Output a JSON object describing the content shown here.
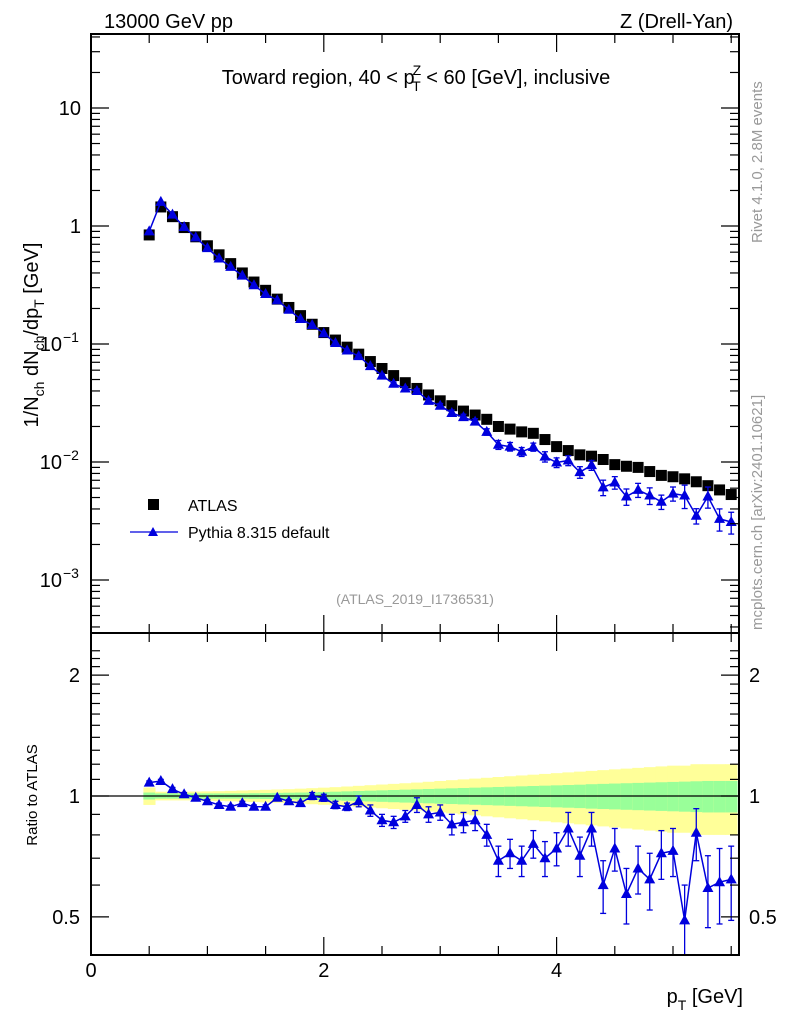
{
  "header": {
    "left": "13000 GeV pp",
    "right": "Z (Drell-Yan)"
  },
  "side_labels": {
    "rivet": "Rivet 4.1.0,  2.8M events",
    "mcplots": "mcplots.cern.ch [arXiv:2401.10621]"
  },
  "chart_data": [
    {
      "type": "scatter",
      "title": "Toward region, 40 < p_T^Z < 60 [GeV], inclusive",
      "title_parts": {
        "pre": "Toward region, 40 < p",
        "sup": "Z",
        "sub": "T",
        "post": " < 60 [GeV], inclusive"
      },
      "ylabel": "1/N_ch dN_ch/dp_T [GeV]",
      "yscale": "log",
      "ylim": [
        0.0003,
        50
      ],
      "xlim": [
        0,
        5.6
      ],
      "ytick_labels": [
        {
          "value": 10,
          "label": "10"
        },
        {
          "value": 1,
          "label": "1"
        },
        {
          "value": 0.1,
          "label": "10",
          "exp": "−1"
        },
        {
          "value": 0.01,
          "label": "10",
          "exp": "−2"
        },
        {
          "value": 0.001,
          "label": "10",
          "exp": "−3"
        }
      ],
      "analysis_id": "(ATLAS_2019_I1736531)",
      "legend": {
        "position": "bottom-left",
        "entries": [
          {
            "name": "ATLAS",
            "marker": "square",
            "color": "#000000"
          },
          {
            "name": "Pythia 8.315 default",
            "marker": "triangle",
            "color": "#0000dd"
          }
        ]
      },
      "x": [
        0.5,
        0.6,
        0.7,
        0.8,
        0.9,
        1.0,
        1.1,
        1.2,
        1.3,
        1.4,
        1.5,
        1.6,
        1.7,
        1.8,
        1.9,
        2.0,
        2.1,
        2.2,
        2.3,
        2.4,
        2.5,
        2.6,
        2.7,
        2.8,
        2.9,
        3.0,
        3.1,
        3.2,
        3.3,
        3.4,
        3.5,
        3.6,
        3.7,
        3.8,
        3.9,
        4.0,
        4.1,
        4.2,
        4.3,
        4.4,
        4.5,
        4.6,
        4.7,
        4.8,
        4.9,
        5.0,
        5.1,
        5.2,
        5.3,
        5.4,
        5.5
      ],
      "series": [
        {
          "name": "ATLAS",
          "values": [
            0.84,
            1.45,
            1.2,
            0.97,
            0.81,
            0.68,
            0.57,
            0.48,
            0.4,
            0.335,
            0.285,
            0.24,
            0.204,
            0.174,
            0.147,
            0.125,
            0.108,
            0.094,
            0.082,
            0.071,
            0.062,
            0.054,
            0.047,
            0.042,
            0.037,
            0.033,
            0.03,
            0.027,
            0.025,
            0.023,
            0.02,
            0.019,
            0.018,
            0.0175,
            0.0155,
            0.0135,
            0.0125,
            0.0115,
            0.0112,
            0.0105,
            0.0095,
            0.0092,
            0.009,
            0.0083,
            0.0077,
            0.0075,
            0.0072,
            0.0068,
            0.0063,
            0.0058,
            0.0053
          ]
        },
        {
          "name": "Pythia 8.315 default",
          "values": [
            0.9,
            1.6,
            1.25,
            0.98,
            0.8,
            0.65,
            0.53,
            0.45,
            0.38,
            0.315,
            0.265,
            0.235,
            0.195,
            0.163,
            0.145,
            0.123,
            0.102,
            0.088,
            0.079,
            0.065,
            0.054,
            0.046,
            0.042,
            0.04,
            0.033,
            0.03,
            0.026,
            0.024,
            0.022,
            0.018,
            0.014,
            0.0135,
            0.0122,
            0.0134,
            0.0111,
            0.0099,
            0.0103,
            0.0082,
            0.0094,
            0.0061,
            0.0067,
            0.0051,
            0.0058,
            0.0052,
            0.0046,
            0.0054,
            0.0052,
            0.0035,
            0.0051,
            0.0033,
            0.0031
          ]
        }
      ]
    },
    {
      "type": "scatter",
      "ylabel": "Ratio to ATLAS",
      "xlabel": "p_T [GeV]",
      "yscale": "log",
      "ylim": [
        0.4,
        2.4
      ],
      "xlim": [
        0,
        5.6
      ],
      "xticks": [
        0,
        2,
        4
      ],
      "yticks": [
        0.5,
        1,
        2
      ],
      "reference_line": 1,
      "band_colors": {
        "inner": "#99ff99",
        "outer": "#ffff99"
      },
      "x": [
        0.5,
        0.6,
        0.7,
        0.8,
        0.9,
        1.0,
        1.1,
        1.2,
        1.3,
        1.4,
        1.5,
        1.6,
        1.7,
        1.8,
        1.9,
        2.0,
        2.1,
        2.2,
        2.3,
        2.4,
        2.5,
        2.6,
        2.7,
        2.8,
        2.9,
        3.0,
        3.1,
        3.2,
        3.3,
        3.4,
        3.5,
        3.6,
        3.7,
        3.8,
        3.9,
        4.0,
        4.1,
        4.2,
        4.3,
        4.4,
        4.5,
        4.6,
        4.7,
        4.8,
        4.9,
        5.0,
        5.1,
        5.2,
        5.3,
        5.4,
        5.5
      ],
      "band_inner": [
        0.02,
        0.015,
        0.015,
        0.015,
        0.015,
        0.015,
        0.015,
        0.015,
        0.015,
        0.016,
        0.017,
        0.018,
        0.019,
        0.02,
        0.021,
        0.023,
        0.025,
        0.027,
        0.029,
        0.031,
        0.033,
        0.035,
        0.037,
        0.039,
        0.041,
        0.043,
        0.045,
        0.047,
        0.049,
        0.051,
        0.053,
        0.055,
        0.057,
        0.059,
        0.061,
        0.063,
        0.065,
        0.067,
        0.07,
        0.072,
        0.074,
        0.076,
        0.078,
        0.08,
        0.082,
        0.084,
        0.086,
        0.088,
        0.09,
        0.09,
        0.09
      ],
      "band_outer": [
        0.05,
        0.025,
        0.025,
        0.025,
        0.026,
        0.027,
        0.028,
        0.03,
        0.032,
        0.034,
        0.036,
        0.038,
        0.04,
        0.043,
        0.046,
        0.049,
        0.052,
        0.056,
        0.06,
        0.064,
        0.068,
        0.072,
        0.076,
        0.08,
        0.085,
        0.09,
        0.095,
        0.1,
        0.105,
        0.11,
        0.115,
        0.12,
        0.125,
        0.13,
        0.135,
        0.14,
        0.145,
        0.15,
        0.155,
        0.16,
        0.165,
        0.17,
        0.175,
        0.18,
        0.185,
        0.19,
        0.19,
        0.2,
        0.2,
        0.2,
        0.2
      ],
      "series": [
        {
          "name": "Pythia 8.315 default",
          "values": [
            1.08,
            1.09,
            1.04,
            1.01,
            0.99,
            0.97,
            0.95,
            0.94,
            0.96,
            0.94,
            0.94,
            0.99,
            0.97,
            0.96,
            1.0,
            0.99,
            0.95,
            0.94,
            0.97,
            0.92,
            0.87,
            0.86,
            0.89,
            0.95,
            0.9,
            0.91,
            0.85,
            0.86,
            0.87,
            0.8,
            0.69,
            0.72,
            0.69,
            0.76,
            0.7,
            0.74,
            0.83,
            0.71,
            0.83,
            0.6,
            0.74,
            0.57,
            0.66,
            0.62,
            0.72,
            0.73,
            0.49,
            0.81,
            0.59,
            0.61,
            0.62
          ],
          "errors": [
            0.01,
            0.01,
            0.01,
            0.01,
            0.01,
            0.01,
            0.01,
            0.01,
            0.01,
            0.01,
            0.01,
            0.01,
            0.01,
            0.01,
            0.02,
            0.02,
            0.02,
            0.02,
            0.03,
            0.03,
            0.03,
            0.03,
            0.03,
            0.04,
            0.04,
            0.04,
            0.05,
            0.05,
            0.05,
            0.05,
            0.06,
            0.06,
            0.06,
            0.06,
            0.07,
            0.07,
            0.08,
            0.08,
            0.08,
            0.09,
            0.09,
            0.09,
            0.09,
            0.1,
            0.1,
            0.1,
            0.11,
            0.12,
            0.12,
            0.13,
            0.13
          ]
        }
      ]
    }
  ]
}
